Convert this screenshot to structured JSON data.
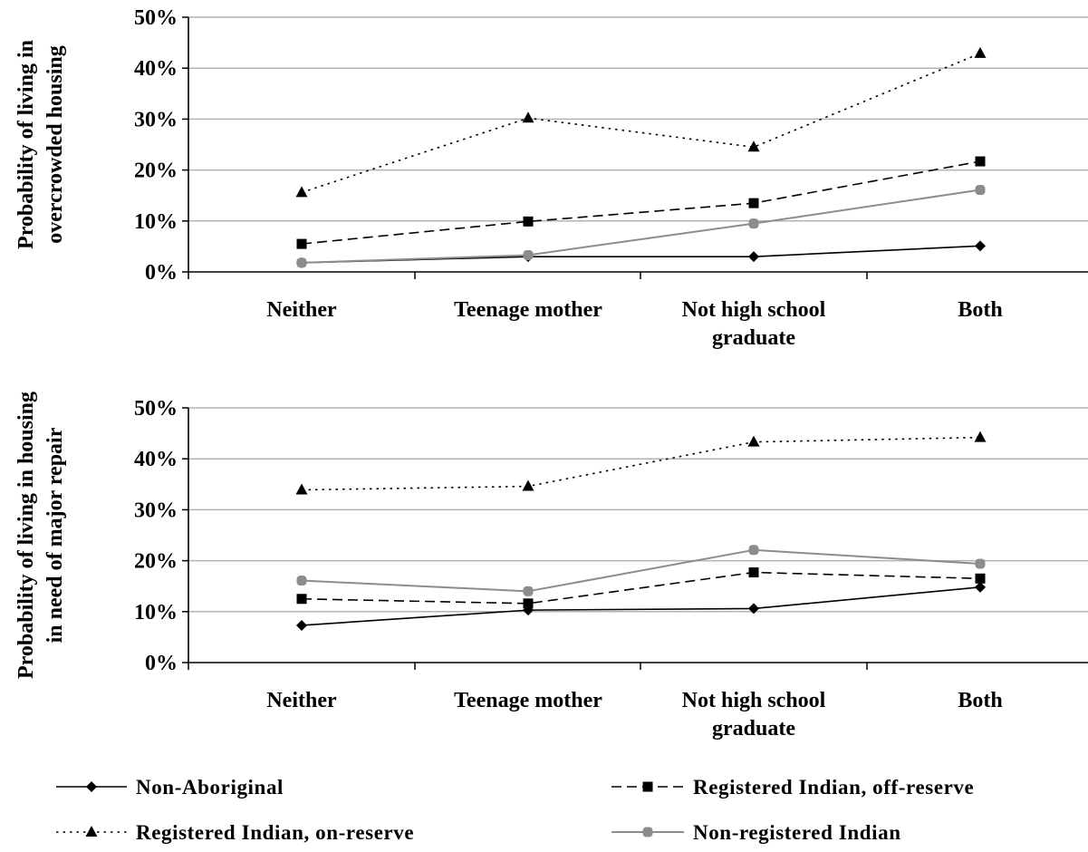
{
  "colors": {
    "non_aboriginal": "#000000",
    "registered_off_reserve": "#000000",
    "registered_on_reserve": "#000000",
    "non_registered": "#8c8c8c",
    "gridline": "#b3b3b3"
  },
  "legend": {
    "placement": "bottom",
    "items": [
      {
        "series": 0,
        "label": "Non-Aboriginal"
      },
      {
        "series": 1,
        "label": "Registered Indian, off-reserve"
      },
      {
        "series": 2,
        "label": "Registered Indian, on-reserve"
      },
      {
        "series": 3,
        "label": "Non-registered Indian"
      }
    ]
  },
  "chart_data": [
    {
      "type": "line",
      "ylabel_lines": [
        "Probability of living in",
        "overcrowded housing"
      ],
      "categories": [
        [
          "Neither"
        ],
        [
          "Teenage mother"
        ],
        [
          "Not high school",
          "graduate"
        ],
        [
          "Both"
        ]
      ],
      "yticks": [
        "0%",
        "10%",
        "20%",
        "30%",
        "40%",
        "50%"
      ],
      "ylim": [
        0,
        50
      ],
      "grid": true,
      "series": [
        {
          "name": "Non-Aboriginal",
          "marker": "diamond",
          "dash": "solid",
          "values": [
            1.8,
            3.0,
            3.0,
            5.1
          ]
        },
        {
          "name": "Registered Indian, off-reserve",
          "marker": "square",
          "dash": "dashed",
          "values": [
            5.5,
            9.9,
            13.5,
            21.7
          ]
        },
        {
          "name": "Registered Indian, on-reserve",
          "marker": "triangle",
          "dash": "dotted",
          "values": [
            15.6,
            30.2,
            24.5,
            42.9
          ]
        },
        {
          "name": "Non-registered Indian",
          "marker": "circle",
          "dash": "solid-gray",
          "values": [
            1.8,
            3.3,
            9.5,
            16.1
          ]
        }
      ]
    },
    {
      "type": "line",
      "ylabel_lines": [
        "Probability of living in housing",
        "in need of major repair"
      ],
      "categories": [
        [
          "Neither"
        ],
        [
          "Teenage mother"
        ],
        [
          "Not high school",
          "graduate"
        ],
        [
          "Both"
        ]
      ],
      "yticks": [
        "0%",
        "10%",
        "20%",
        "30%",
        "40%",
        "50%"
      ],
      "ylim": [
        0,
        50
      ],
      "grid": true,
      "series": [
        {
          "name": "Non-Aboriginal",
          "marker": "diamond",
          "dash": "solid",
          "values": [
            7.3,
            10.3,
            10.6,
            14.8
          ]
        },
        {
          "name": "Registered Indian, off-reserve",
          "marker": "square",
          "dash": "dashed",
          "values": [
            12.5,
            11.6,
            17.7,
            16.5
          ]
        },
        {
          "name": "Registered Indian, on-reserve",
          "marker": "triangle",
          "dash": "dotted",
          "values": [
            33.9,
            34.6,
            43.3,
            44.2
          ]
        },
        {
          "name": "Non-registered Indian",
          "marker": "circle",
          "dash": "solid-gray",
          "values": [
            16.1,
            14.0,
            22.1,
            19.4
          ]
        }
      ]
    }
  ]
}
